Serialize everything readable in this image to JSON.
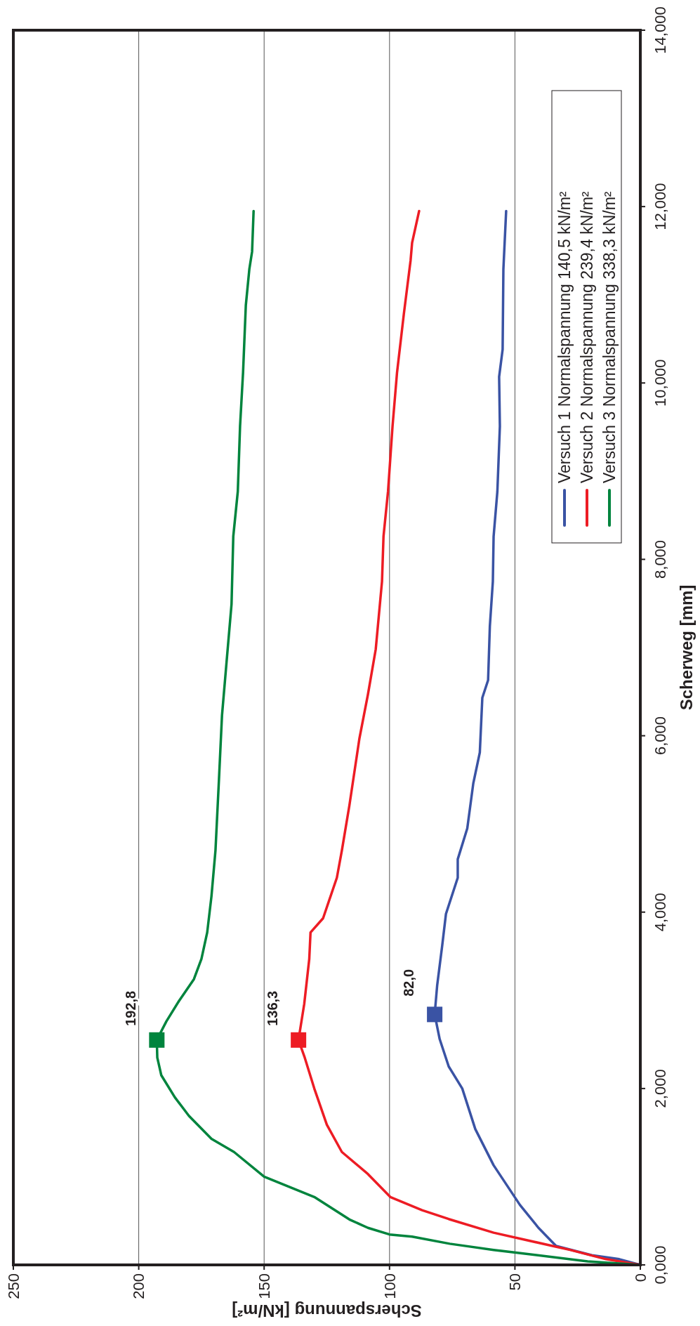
{
  "chart_data": {
    "type": "line",
    "xlabel": "Scherspannung [kN/m²]",
    "ylabel": "Scherweg [mm]",
    "xlim": [
      250,
      0
    ],
    "ylim": [
      0,
      14
    ],
    "xticks": [
      250,
      200,
      150,
      100,
      50,
      0
    ],
    "yticks": [
      {
        "value": 0,
        "label": "0,000"
      },
      {
        "value": 2,
        "label": "2,000"
      },
      {
        "value": 4,
        "label": "4,000"
      },
      {
        "value": 6,
        "label": "6,000"
      },
      {
        "value": 8,
        "label": "8,000"
      },
      {
        "value": 10,
        "label": "10,000"
      },
      {
        "value": 12,
        "label": "12,000"
      },
      {
        "value": 14,
        "label": "14,000"
      }
    ],
    "grid": "x",
    "legend": "top right",
    "line_style": "solid",
    "marker": "none",
    "series": [
      {
        "name": "Versuch 1 Normalspannung 140,5 kN/m²",
        "color": "#3a53a4",
        "values": [
          0,
          0.065,
          0.11,
          0.215,
          0.42,
          0.68,
          1.13,
          1.54,
          2.0,
          2.25,
          2.56,
          2.84,
          3.17,
          3.62,
          3.98,
          4.39,
          4.6,
          4.95,
          5.46,
          5.81,
          6.43,
          6.63,
          7.24,
          7.75,
          8.26,
          8.77,
          9.51,
          10.07,
          10.38,
          11.29,
          11.95
        ],
        "x": [
          0,
          8.4,
          19.3,
          33.6,
          40.6,
          48,
          58.5,
          65.8,
          71,
          76.4,
          80,
          82,
          81,
          79,
          77.5,
          72.8,
          72.8,
          69,
          66.6,
          64,
          63,
          60.7,
          60,
          58.8,
          58.5,
          57,
          56,
          56.3,
          54.9,
          54.6,
          53.5
        ]
      },
      {
        "name": "Versuch 2 Normalspannung 239,4 kN/m²",
        "color": "#ed1c24",
        "values": [
          0,
          0.065,
          0.17,
          0.365,
          0.52,
          0.62,
          0.77,
          1.03,
          1.28,
          1.59,
          2.0,
          2.35,
          2.55,
          2.96,
          3.47,
          3.77,
          3.93,
          4.39,
          4.7,
          5.21,
          5.97,
          6.47,
          6.98,
          7.75,
          8.26,
          8.77,
          9.51,
          10.12,
          10.78,
          11.39,
          11.59,
          11.95
        ],
        "x": [
          0,
          13.7,
          28,
          58.5,
          76.4,
          87,
          99.7,
          108.6,
          119,
          125,
          130,
          133.8,
          136.3,
          134,
          132,
          131.5,
          126.5,
          121,
          119,
          116,
          112,
          108.6,
          105.5,
          103,
          102.4,
          100.6,
          98.8,
          97,
          94.3,
          91.6,
          91,
          88.2
        ]
      },
      {
        "name": "Versuch 3 Normalspannung 338,3 kN/m²",
        "color": "#00843d",
        "values": [
          0,
          0.04,
          0.17,
          0.24,
          0.32,
          0.345,
          0.42,
          0.515,
          0.77,
          1.0,
          1.28,
          1.43,
          1.69,
          1.9,
          2.15,
          2.35,
          2.55,
          2.76,
          2.99,
          3.24,
          3.47,
          3.77,
          4.18,
          4.7,
          5.51,
          6.23,
          6.83,
          7.49,
          8.26,
          8.77,
          9.51,
          10.12,
          10.88,
          11.29,
          11.49,
          11.95
        ],
        "x": [
          0,
          21,
          58.5,
          76,
          91,
          100,
          108.6,
          116,
          130,
          150,
          162,
          171,
          180,
          185.6,
          191,
          192.6,
          192.8,
          189,
          184,
          178,
          175,
          172.7,
          171,
          169.4,
          168,
          166.8,
          165,
          163,
          162.3,
          160.5,
          159.6,
          158.4,
          157.3,
          155.9,
          154.8,
          154.2
        ]
      }
    ],
    "annotations": [
      {
        "text": "192,8",
        "x": 192.8,
        "y": 2.55
      },
      {
        "text": "136,3",
        "x": 136.3,
        "y": 2.55
      },
      {
        "text": "82,0",
        "x": 82,
        "y": 2.84
      }
    ]
  }
}
